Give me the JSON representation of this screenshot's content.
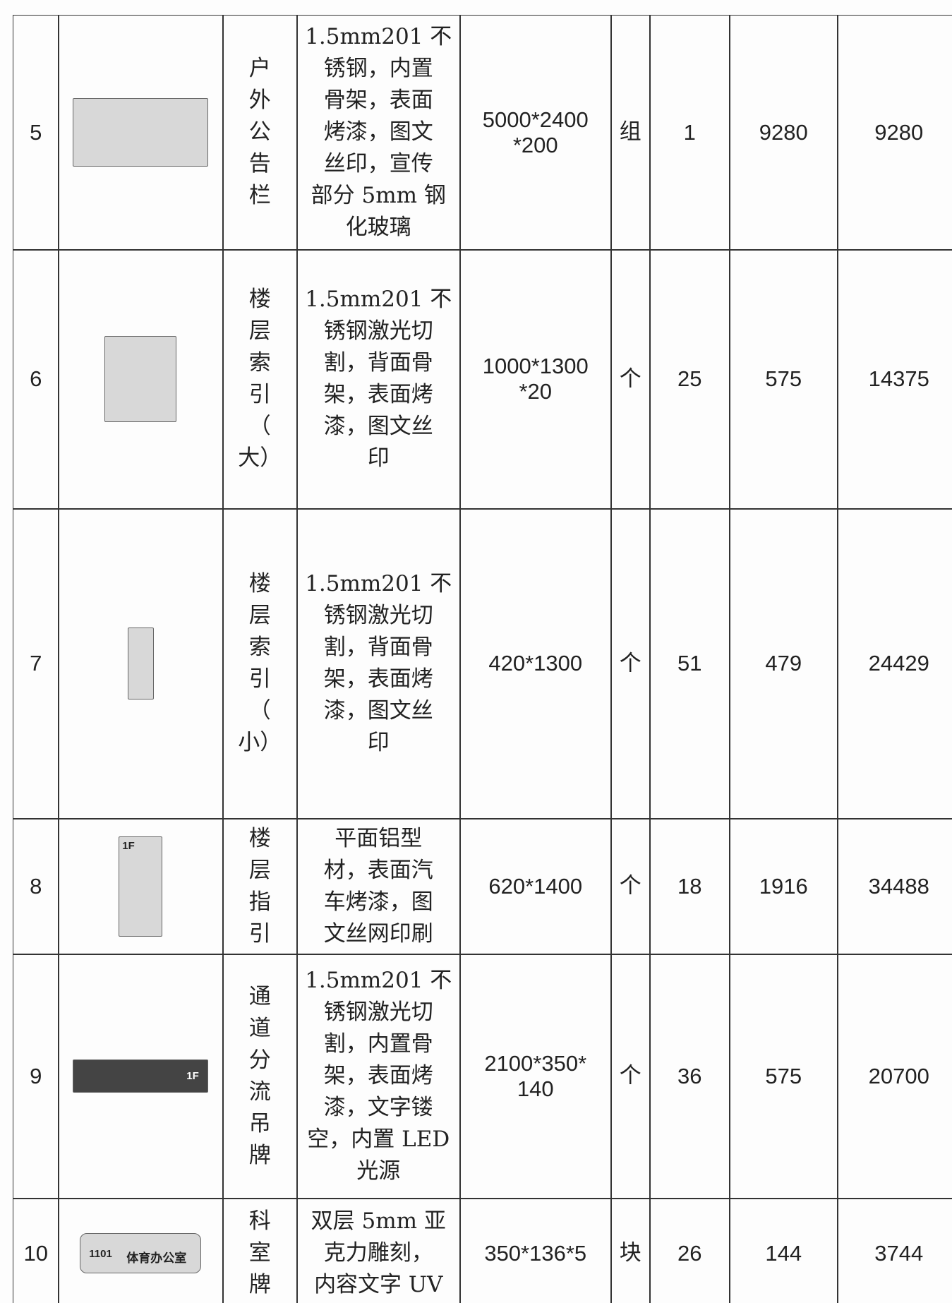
{
  "table": {
    "rows": [
      {
        "no": "5",
        "name": [
          "户",
          "外",
          "公",
          "告",
          "栏"
        ],
        "desc": [
          "1.5mm201 不",
          "锈钢，内置",
          "骨架，表面",
          "烤漆，图文",
          "丝印，宣传",
          "部分 5mm 钢",
          "化玻璃"
        ],
        "spec": [
          "5000*2400",
          "*200"
        ],
        "unit": "组",
        "qty": 1,
        "price": 9280,
        "total": 9280
      },
      {
        "no": "6",
        "name": [
          "楼",
          "层",
          "索",
          "引",
          "（",
          "大）"
        ],
        "desc": [
          "1.5mm201 不",
          "锈钢激光切",
          "割，背面骨",
          "架，表面烤",
          "漆，图文丝",
          "印"
        ],
        "spec": [
          "1000*1300",
          "*20"
        ],
        "unit": "个",
        "qty": 25,
        "price": 575,
        "total": 14375
      },
      {
        "no": "7",
        "name": [
          "楼",
          "层",
          "索",
          "引",
          "（",
          "小）"
        ],
        "desc": [
          "1.5mm201 不",
          "锈钢激光切",
          "割，背面骨",
          "架，表面烤",
          "漆，图文丝",
          "印"
        ],
        "spec": [
          "420*1300"
        ],
        "unit": "个",
        "qty": 51,
        "price": 479,
        "total": 24429
      },
      {
        "no": "8",
        "name": [
          "楼",
          "层",
          "指",
          "引"
        ],
        "desc": [
          "平面铝型",
          "材，表面汽",
          "车烤漆，图",
          "文丝网印刷"
        ],
        "spec": [
          "620*1400"
        ],
        "unit": "个",
        "qty": 18,
        "price": 1916,
        "total": 34488,
        "image_text": [
          "1F"
        ]
      },
      {
        "no": "9",
        "name": [
          "通",
          "道",
          "分",
          "流",
          "吊",
          "牌"
        ],
        "desc": [
          "1.5mm201 不",
          "锈钢激光切",
          "割，内置骨",
          "架，表面烤",
          "漆，文字镂",
          "空，内置 LED",
          "光源"
        ],
        "spec": [
          "2100*350*",
          "140"
        ],
        "unit": "个",
        "qty": 36,
        "price": 575,
        "total": 20700,
        "image_text": [
          "1F"
        ]
      },
      {
        "no": "10",
        "name": [
          "科",
          "室",
          "牌"
        ],
        "desc": [
          "双层 5mm 亚",
          "克力雕刻，",
          "内容文字 UV"
        ],
        "spec": [
          "350*136*5"
        ],
        "unit": "块",
        "qty": 26,
        "price": 144,
        "total": 3744,
        "image_text": [
          "1101",
          "体育办公室"
        ]
      }
    ]
  }
}
